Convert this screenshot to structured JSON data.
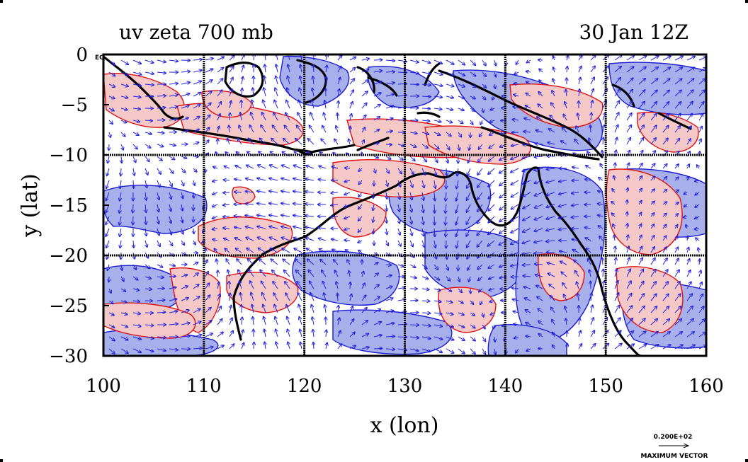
{
  "chart_data": {
    "type": "contour",
    "title_left": "uv zeta 700 mb",
    "title_right": "30 Jan 12Z",
    "xlabel": "x (lon)",
    "ylabel": "y (lat)",
    "xlim": [
      100,
      160
    ],
    "ylim": [
      -30,
      0
    ],
    "x_ticks": [
      100,
      110,
      120,
      130,
      140,
      150,
      160
    ],
    "y_ticks": [
      0,
      -5,
      -10,
      -15,
      -20,
      -25,
      -30
    ],
    "x_tick_labels": [
      "100",
      "110",
      "120",
      "130",
      "140",
      "150",
      "160"
    ],
    "y_tick_labels": [
      "0",
      "−5",
      "−10",
      "−15",
      "−20",
      "−25",
      "−30"
    ],
    "y_tick_note": "EQ",
    "grid_x": [
      110,
      120,
      130,
      140,
      150
    ],
    "grid_y": [
      -10,
      -20
    ],
    "vector_legend": {
      "value": "0.200E+02",
      "label": "MAXIMUM VECTOR"
    },
    "colors": {
      "positive_fill": "#f5c8c8",
      "positive_contour": "#e01010",
      "negative_fill": "#a8b0ec",
      "negative_contour": "#1c1cd0",
      "vector": "#2020e0",
      "coast": "#000000"
    }
  }
}
